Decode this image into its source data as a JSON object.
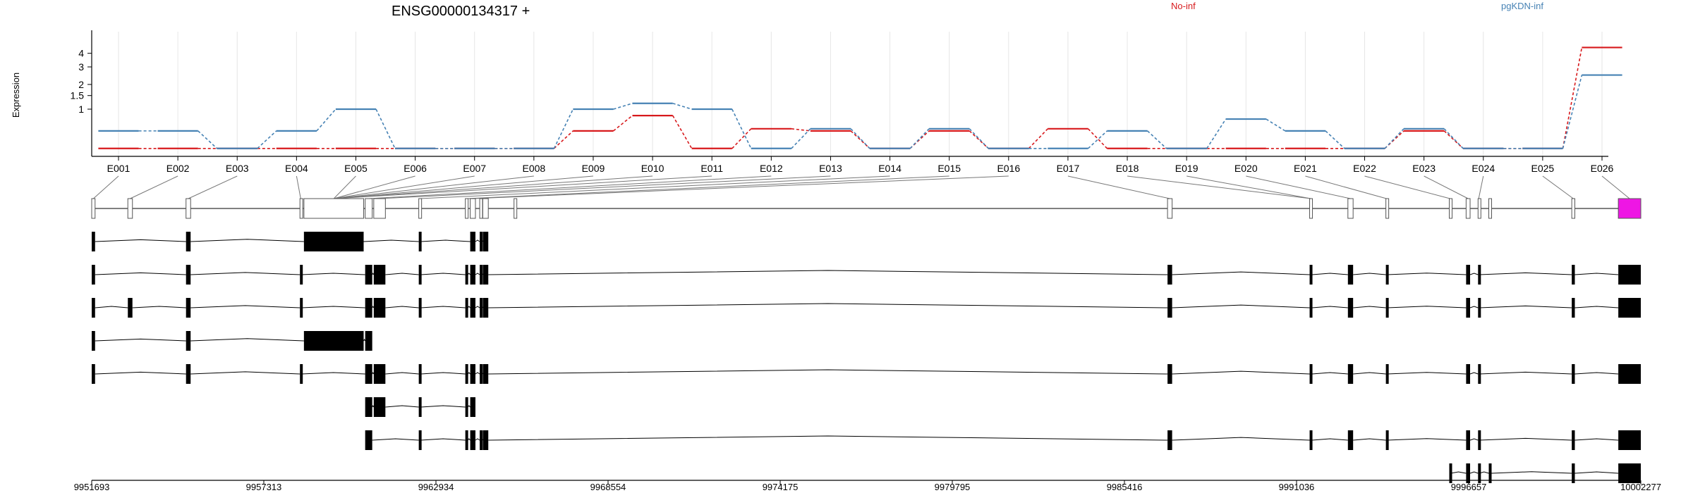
{
  "chart_data": {
    "type": "line",
    "title": "ENSG00000134317 +",
    "ylabel": "Expression",
    "yticks": [
      "4",
      "3",
      "2",
      "1.5",
      "1"
    ],
    "categories": [
      "E001",
      "E002",
      "E003",
      "E004",
      "E005",
      "E006",
      "E007",
      "E008",
      "E009",
      "E010",
      "E011",
      "E012",
      "E013",
      "E014",
      "E015",
      "E016",
      "E017",
      "E018",
      "E019",
      "E020",
      "E021",
      "E022",
      "E023",
      "E024",
      "E025",
      "E026"
    ],
    "series": [
      {
        "name": "No-inf",
        "color": "#d7191c",
        "values": [
          0.05,
          0.05,
          0.05,
          0.05,
          0.05,
          0.05,
          0.05,
          0.05,
          0.4,
          0.8,
          0.05,
          0.45,
          0.4,
          0.05,
          0.4,
          0.05,
          0.45,
          0.05,
          0.05,
          0.05,
          0.05,
          0.05,
          0.4,
          0.05,
          0.05,
          4.5
        ]
      },
      {
        "name": "pgKDN-inf",
        "color": "#4682b4",
        "values": [
          0.4,
          0.4,
          0.05,
          0.4,
          1.0,
          0.05,
          0.05,
          0.05,
          1.0,
          1.2,
          1.0,
          0.05,
          0.45,
          0.05,
          0.45,
          0.05,
          0.05,
          0.4,
          0.05,
          0.7,
          0.4,
          0.05,
          0.45,
          0.05,
          0.05,
          2.5
        ]
      }
    ],
    "genome_coords": {
      "ticks": [
        "9951693",
        "9957313",
        "9962934",
        "9968554",
        "9974175",
        "9979795",
        "9985416",
        "9991036",
        "9996657",
        "10002277"
      ],
      "start": 9951693,
      "end": 10002277
    },
    "exon_bins": [
      [
        9951693,
        9951803
      ],
      [
        9952873,
        9953023
      ],
      [
        9954773,
        9954923
      ],
      [
        9958493,
        9958543
      ],
      [
        9958623,
        9960573
      ],
      [
        9960623,
        9960853
      ],
      [
        9960903,
        9961283
      ],
      [
        9962373,
        9962443
      ],
      [
        9963893,
        9963973
      ],
      [
        9964053,
        9964223
      ],
      [
        9964363,
        9964413
      ],
      [
        9964463,
        9964643
      ],
      [
        9965483,
        9965553
      ],
      [
        9986823,
        9986973
      ],
      [
        9991463,
        9991543
      ],
      [
        9992713,
        9992883
      ],
      [
        9993953,
        9993993
      ],
      [
        9996023,
        9996073
      ],
      [
        9996573,
        9996703
      ],
      [
        9996963,
        9997003
      ],
      [
        9997313,
        9997403
      ],
      [
        10000023,
        10000123
      ],
      [
        10001543,
        10002277
      ]
    ],
    "bin_labels": [
      {
        "bin": 0,
        "labels": [
          "E001"
        ]
      },
      {
        "bin": 1,
        "labels": [
          "E002"
        ]
      },
      {
        "bin": 2,
        "labels": [
          "E003"
        ]
      },
      {
        "bin": 3,
        "labels": [
          "E004"
        ]
      },
      {
        "bin": 4,
        "labels": [
          "E005",
          "E006",
          "E007",
          "E008",
          "E009",
          "E010",
          "E011"
        ]
      },
      {
        "bin": 5,
        "labels": [
          "E012"
        ]
      },
      {
        "bin": 6,
        "labels": [
          "E013"
        ]
      },
      {
        "bin": 7,
        "labels": [
          "E014"
        ]
      },
      {
        "bin": 8,
        "labels": [
          "E015"
        ]
      },
      {
        "bin": 9,
        "labels": [
          "E016"
        ]
      },
      {
        "bin": 13,
        "labels": [
          "E017"
        ]
      },
      {
        "bin": 14,
        "labels": [
          "E018",
          "E019"
        ]
      },
      {
        "bin": 15,
        "labels": [
          "E020"
        ]
      },
      {
        "bin": 16,
        "labels": [
          "E021"
        ]
      },
      {
        "bin": 17,
        "labels": [
          "E022"
        ]
      },
      {
        "bin": 18,
        "labels": [
          "E023"
        ]
      },
      {
        "bin": 19,
        "labels": [
          "E024"
        ]
      },
      {
        "bin": 21,
        "labels": [
          "E025"
        ]
      },
      {
        "bin": 22,
        "labels": [
          "E026"
        ]
      }
    ],
    "highlight_bin": 22,
    "highlight_color": "#ee16e4",
    "transcripts": [
      [
        0,
        2,
        4,
        7,
        9,
        10,
        11
      ],
      [
        0,
        2,
        3,
        5,
        6,
        7,
        8,
        9,
        10,
        11,
        13,
        14,
        15,
        16,
        18,
        19,
        21,
        22
      ],
      [
        0,
        1,
        2,
        3,
        5,
        6,
        7,
        8,
        9,
        10,
        11,
        13,
        14,
        15,
        16,
        18,
        19,
        21,
        22
      ],
      [
        0,
        2,
        4,
        5
      ],
      [
        0,
        2,
        3,
        5,
        6,
        7,
        8,
        9,
        10,
        11,
        13,
        14,
        15,
        16,
        18,
        19,
        21,
        22
      ],
      [
        5,
        6,
        7,
        8,
        9
      ],
      [
        5,
        7,
        8,
        9,
        10,
        11,
        13,
        14,
        15,
        16,
        18,
        19,
        21,
        22
      ],
      [
        17,
        18,
        19,
        20,
        21,
        22
      ]
    ]
  }
}
